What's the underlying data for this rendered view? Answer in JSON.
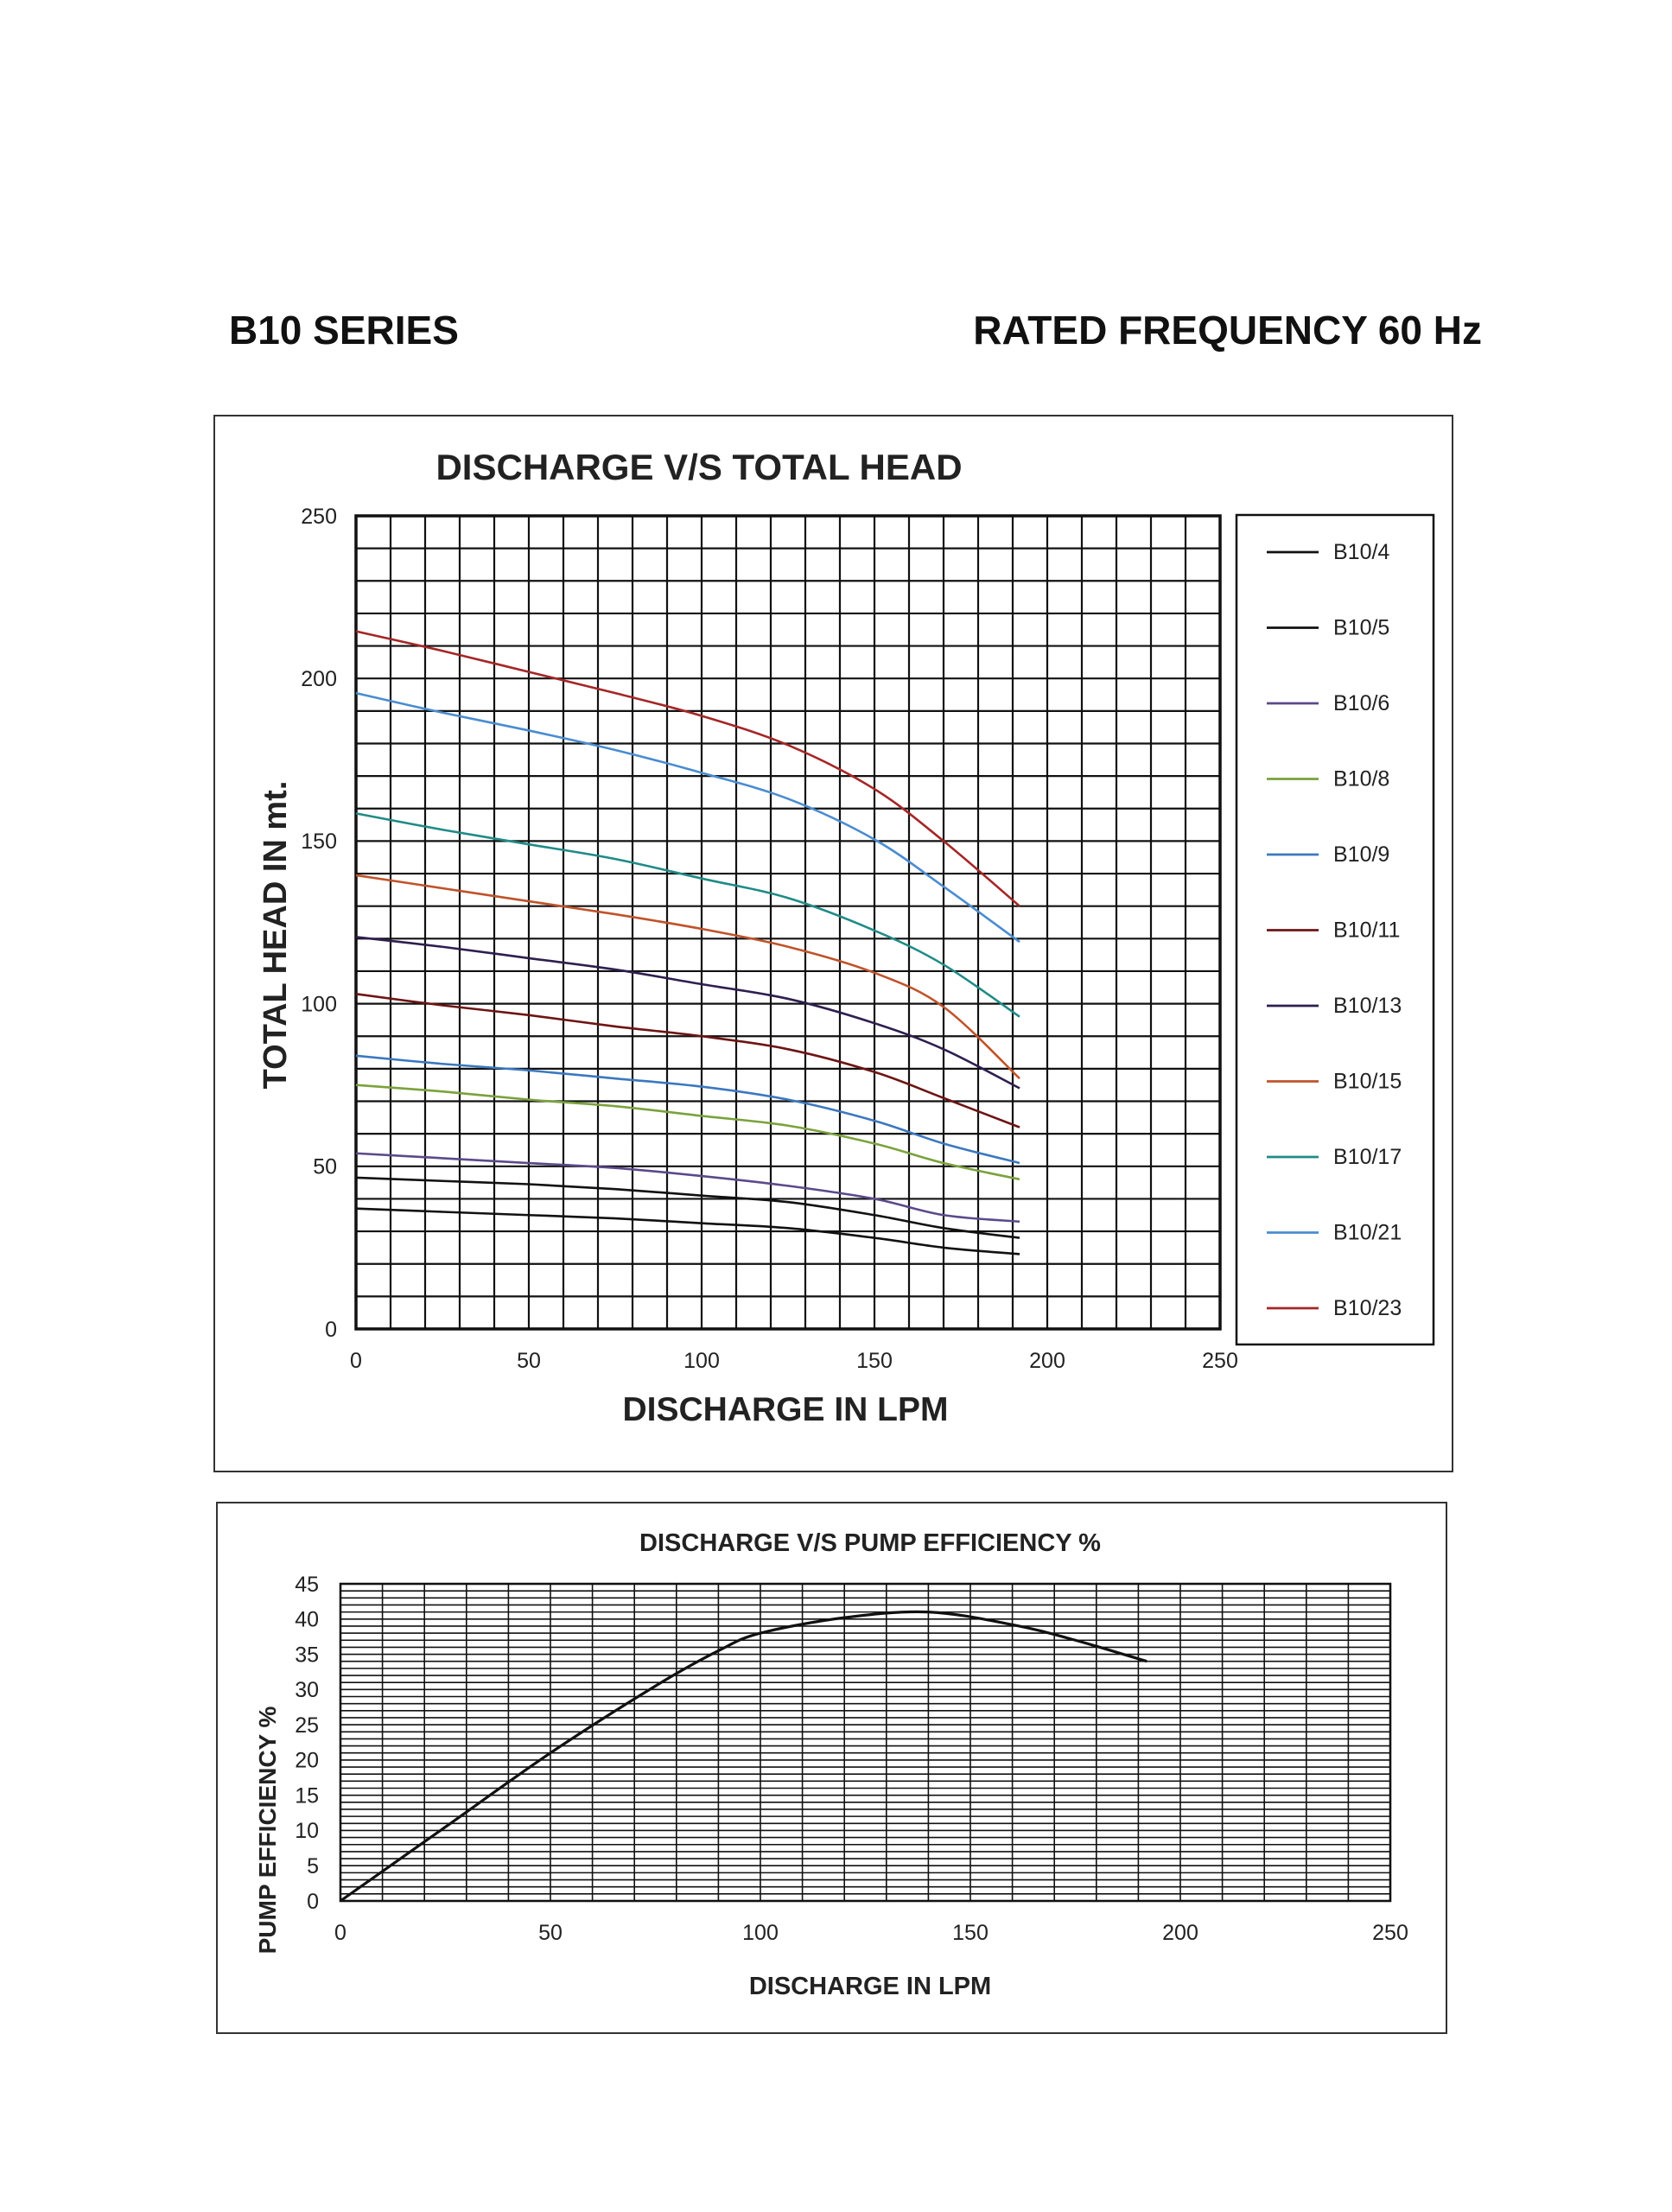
{
  "page": {
    "series_title": "B10 SERIES",
    "frequency_title": "RATED FREQUENCY 60 Hz"
  },
  "chart_data": [
    {
      "type": "line",
      "title": "DISCHARGE V/S TOTAL HEAD",
      "xlabel": "DISCHARGE IN LPM",
      "ylabel": "TOTAL HEAD IN mt.",
      "xlim": [
        0,
        250
      ],
      "ylim": [
        0,
        250
      ],
      "xticks": [
        0,
        50,
        100,
        150,
        200,
        250
      ],
      "yticks": [
        0,
        50,
        100,
        150,
        200,
        250
      ],
      "grid": true,
      "legend_position": "right",
      "x": [
        0,
        25,
        50,
        75,
        100,
        125,
        150,
        170,
        192
      ],
      "series": [
        {
          "name": "B10/4",
          "color": "#111111",
          "values": [
            37,
            36,
            35,
            34,
            32.5,
            31,
            28,
            25,
            23
          ]
        },
        {
          "name": "B10/5",
          "color": "#111111",
          "values": [
            46.5,
            45.5,
            44.5,
            43,
            41,
            39,
            35,
            31,
            28
          ]
        },
        {
          "name": "B10/6",
          "color": "#5b4a8a",
          "values": [
            54,
            52.5,
            51,
            49.5,
            47,
            44,
            40,
            35,
            33
          ]
        },
        {
          "name": "B10/8",
          "color": "#7aa23c",
          "values": [
            75,
            73,
            70.5,
            68.5,
            65.5,
            62.5,
            57,
            51,
            46
          ]
        },
        {
          "name": "B10/9",
          "color": "#3b78c0",
          "values": [
            84,
            81.5,
            79.5,
            77,
            74.5,
            70.5,
            64,
            57,
            51
          ]
        },
        {
          "name": "B10/11",
          "color": "#6e1414",
          "values": [
            103,
            99.5,
            96.5,
            93,
            90,
            86,
            79,
            71,
            62
          ]
        },
        {
          "name": "B10/13",
          "color": "#2e1f4f",
          "values": [
            120.5,
            117.5,
            114,
            110.5,
            106,
            101.5,
            94,
            86,
            74
          ]
        },
        {
          "name": "B10/15",
          "color": "#c0532a",
          "values": [
            139.5,
            135.5,
            131.5,
            127.5,
            123,
            117.5,
            109.5,
            99,
            77
          ]
        },
        {
          "name": "B10/17",
          "color": "#1f8b86",
          "values": [
            158.5,
            153.5,
            149,
            144.5,
            138.5,
            132.5,
            122.5,
            112,
            96
          ]
        },
        {
          "name": "B10/21",
          "color": "#4a8cd0",
          "values": [
            195.5,
            189.5,
            184,
            178,
            171,
            163,
            150.5,
            136,
            119
          ]
        },
        {
          "name": "B10/23",
          "color": "#a52626",
          "values": [
            214.5,
            208.5,
            202,
            195.5,
            188.5,
            179.5,
            166,
            150,
            130
          ]
        }
      ]
    },
    {
      "type": "line",
      "title": "DISCHARGE  V/S PUMP EFFICIENCY %",
      "xlabel": "DISCHARGE IN LPM",
      "ylabel": "PUMP EFFICIENCY %",
      "xlim": [
        0,
        250
      ],
      "ylim": [
        0,
        45
      ],
      "xticks": [
        0,
        50,
        100,
        150,
        200,
        250
      ],
      "yticks": [
        0,
        5,
        10,
        15,
        20,
        25,
        30,
        35,
        40,
        45
      ],
      "grid": true,
      "series": [
        {
          "color": "#111111",
          "x": [
            0,
            25,
            50,
            75,
            90,
            100,
            120,
            140,
            160,
            175,
            192
          ],
          "values": [
            0,
            10.5,
            21,
            30.5,
            35.5,
            38,
            40.2,
            41,
            39.2,
            37,
            34
          ]
        }
      ]
    }
  ]
}
